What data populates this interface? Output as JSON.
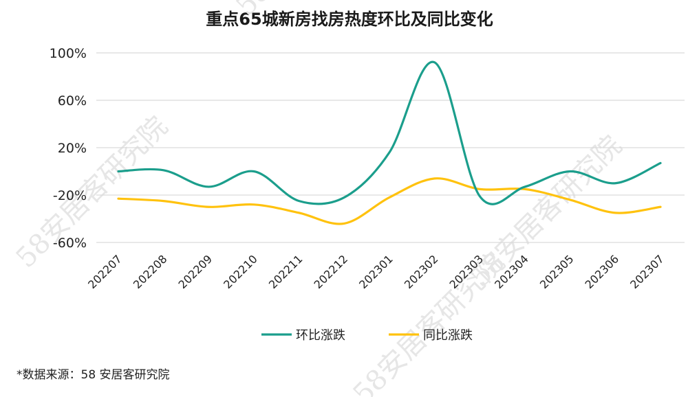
{
  "title": "重点65城新房找房热度环比及同比变化",
  "source": "*数据来源：58 安居客研究院",
  "watermark": "58安居客研究院",
  "colors": {
    "hb": "#1b9e8c",
    "tb": "#ffc20e",
    "grid": "#d9d9d9"
  },
  "chart_data": {
    "type": "line",
    "title": "重点65城新房找房热度环比及同比变化",
    "categories": [
      "202207",
      "202208",
      "202209",
      "202210",
      "202211",
      "202212",
      "202301",
      "202302",
      "202303",
      "202304",
      "202305",
      "202306",
      "202307"
    ],
    "yticks": [
      "100%",
      "60%",
      "20%",
      "-20%",
      "-60%"
    ],
    "ylim": [
      -60,
      100
    ],
    "grid": true,
    "legend": "bottom-center",
    "series": [
      {
        "name": "环比涨跌",
        "color": "#1b9e8c",
        "values": [
          0,
          1,
          -13,
          0,
          -25,
          -22,
          16,
          92,
          -21,
          -13,
          0,
          -10,
          7
        ]
      },
      {
        "name": "同比涨跌",
        "color": "#ffc20e",
        "values": [
          -23,
          -25,
          -30,
          -28,
          -35,
          -44,
          -22,
          -6,
          -15,
          -15,
          -24,
          -35,
          -30
        ]
      }
    ]
  }
}
